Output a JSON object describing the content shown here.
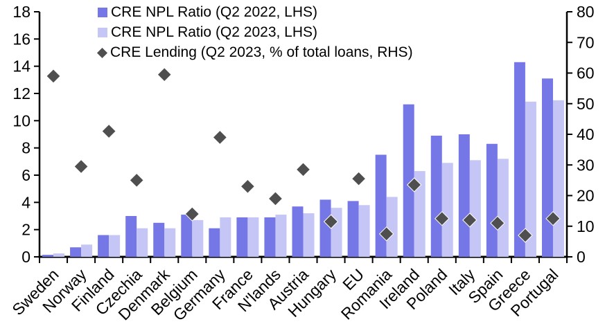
{
  "chart_data": {
    "type": "bar",
    "title": "",
    "categories": [
      "Sweden",
      "Norway",
      "Finland",
      "Czechia",
      "Denmark",
      "Belgium",
      "Germany",
      "France",
      "N'lands",
      "Austria",
      "Hungary",
      "EU",
      "Romania",
      "Ireland",
      "Poland",
      "Italy",
      "Spain",
      "Greece",
      "Portugal"
    ],
    "series": [
      {
        "name": "CRE NPL Ratio (Q2 2022, LHS)",
        "type": "bar",
        "axis": "left",
        "color": "#7577e6",
        "values": [
          0.15,
          0.7,
          1.6,
          3.0,
          2.5,
          3.1,
          2.1,
          2.9,
          2.9,
          3.7,
          4.2,
          4.1,
          7.5,
          11.2,
          8.9,
          9.0,
          8.3,
          14.3,
          13.1
        ]
      },
      {
        "name": "CRE NPL Ratio (Q2 2023, LHS)",
        "type": "bar",
        "axis": "left",
        "color": "#c5c6f5",
        "values": [
          0.25,
          0.9,
          1.6,
          2.1,
          2.1,
          2.7,
          2.9,
          2.9,
          3.1,
          3.2,
          3.6,
          3.8,
          4.4,
          6.3,
          6.9,
          7.1,
          7.2,
          11.4,
          11.5
        ]
      },
      {
        "name": "CRE Lending (Q2 2023, % of total loans, RHS)",
        "type": "scatter-diamond",
        "axis": "right",
        "color": "#4f4f4f",
        "values": [
          59,
          29.5,
          41,
          25,
          59.5,
          14,
          39,
          23,
          19,
          28.5,
          11.5,
          25.5,
          7.5,
          23.5,
          12.5,
          12,
          11,
          7,
          12.5
        ]
      }
    ],
    "left_axis": {
      "min": 0,
      "max": 18,
      "step": 2,
      "tick_labels": [
        "0",
        "2",
        "4",
        "6",
        "8",
        "10",
        "12",
        "14",
        "16",
        "18"
      ]
    },
    "right_axis": {
      "min": 0,
      "max": 80,
      "step": 10,
      "tick_labels": [
        "0",
        "10",
        "20",
        "30",
        "40",
        "50",
        "60",
        "70",
        "80"
      ]
    },
    "xlabel": "",
    "ylabel": "",
    "grid": false,
    "legend_position": "top-left"
  },
  "style": {
    "axis_color": "#000000",
    "text_color": "#000000",
    "background": "#ffffff"
  }
}
